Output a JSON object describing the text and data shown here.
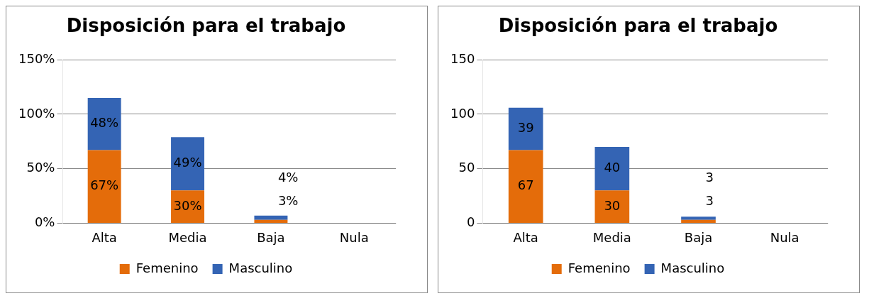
{
  "chart_data": [
    {
      "type": "bar",
      "title": "Disposición para el trabajo",
      "categories": [
        "Alta",
        "Media",
        "Baja",
        "Nula"
      ],
      "stacked": true,
      "series": [
        {
          "name": "Femenino",
          "color": "#e46c0a",
          "values": [
            67,
            30,
            3,
            0
          ],
          "value_labels": [
            "67%",
            "30%",
            "3%",
            null
          ]
        },
        {
          "name": "Masculino",
          "color": "#3464b4",
          "values": [
            48,
            49,
            4,
            0
          ],
          "value_labels": [
            "48%",
            "49%",
            "4%",
            null
          ]
        }
      ],
      "ylim": [
        0,
        150
      ],
      "yticks": [
        {
          "value": 0,
          "label": "0%"
        },
        {
          "value": 50,
          "label": "50%"
        },
        {
          "value": 100,
          "label": "100%"
        },
        {
          "value": 150,
          "label": "150%"
        }
      ],
      "grid": "y",
      "legend": "bottom"
    },
    {
      "type": "bar",
      "title": "Disposición para el trabajo",
      "categories": [
        "Alta",
        "Media",
        "Baja",
        "Nula"
      ],
      "stacked": true,
      "series": [
        {
          "name": "Femenino",
          "color": "#e46c0a",
          "values": [
            67,
            30,
            3,
            0
          ],
          "value_labels": [
            "67",
            "30",
            "3",
            null
          ]
        },
        {
          "name": "Masculino",
          "color": "#3464b4",
          "values": [
            39,
            40,
            3,
            0
          ],
          "value_labels": [
            "39",
            "40",
            "3",
            null
          ]
        }
      ],
      "ylim": [
        0,
        150
      ],
      "yticks": [
        0,
        50,
        100,
        150
      ],
      "grid": "y",
      "legend": "bottom"
    }
  ]
}
